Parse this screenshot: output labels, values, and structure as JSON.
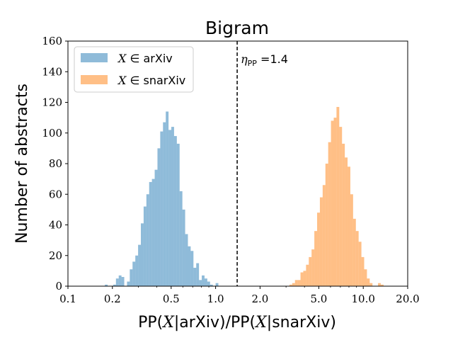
{
  "chart_data": {
    "type": "bar",
    "title": "Bigram",
    "xlabel": {
      "pp1": "PP(",
      "x1": "X",
      "mid1": "|arXiv)/PP(",
      "x2": "X",
      "mid2": "|snarXiv)"
    },
    "ylabel": "Number of abstracts",
    "xscale": "log",
    "xlim": [
      0.1,
      20.0
    ],
    "ylim": [
      0,
      160
    ],
    "xticks": [
      0.1,
      0.2,
      0.5,
      1.0,
      2.0,
      5.0,
      10.0,
      20.0
    ],
    "xtick_labels": [
      "0.1",
      "0.2",
      "0.5",
      "1.0",
      "2.0",
      "5.0",
      "10.0",
      "20.0"
    ],
    "yticks": [
      0,
      20,
      40,
      60,
      80,
      100,
      120,
      140,
      160
    ],
    "ytick_labels": [
      "0",
      "20",
      "40",
      "60",
      "80",
      "100",
      "120",
      "140",
      "160"
    ],
    "legend_position": "top-left",
    "bins": {
      "log10_start": -0.75,
      "log10_width": 0.01875
    },
    "series": [
      {
        "name": "arXiv",
        "legend_math": "X",
        "legend_in": " ∈ ",
        "color": "#1f77b4",
        "opacity": 0.5,
        "counts": [
          1,
          0,
          0,
          1,
          5,
          7,
          6,
          0,
          3,
          11,
          16,
          20,
          27,
          41,
          52,
          60,
          68,
          70,
          76,
          90,
          101,
          107,
          114,
          102,
          104,
          98,
          93,
          62,
          50,
          34,
          26,
          23,
          12,
          15,
          4,
          7,
          5,
          3,
          1,
          0,
          2
        ]
      },
      {
        "name": "snarXiv",
        "legend_math": "X",
        "legend_in": " ∈ ",
        "color": "#ff7f0e",
        "opacity": 0.5,
        "counts": [
          1,
          2,
          4,
          4,
          9,
          10,
          14,
          19,
          24,
          36,
          48,
          58,
          66,
          80,
          94,
          108,
          110,
          117,
          104,
          93,
          84,
          78,
          60,
          44,
          36,
          29,
          19,
          11,
          5,
          2,
          0,
          0,
          2,
          1
        ]
      }
    ],
    "threshold": {
      "x": 1.4,
      "style": "dashed",
      "label_symbol": "η",
      "label_sub": "PP",
      "label_eq": " =1.4"
    }
  }
}
